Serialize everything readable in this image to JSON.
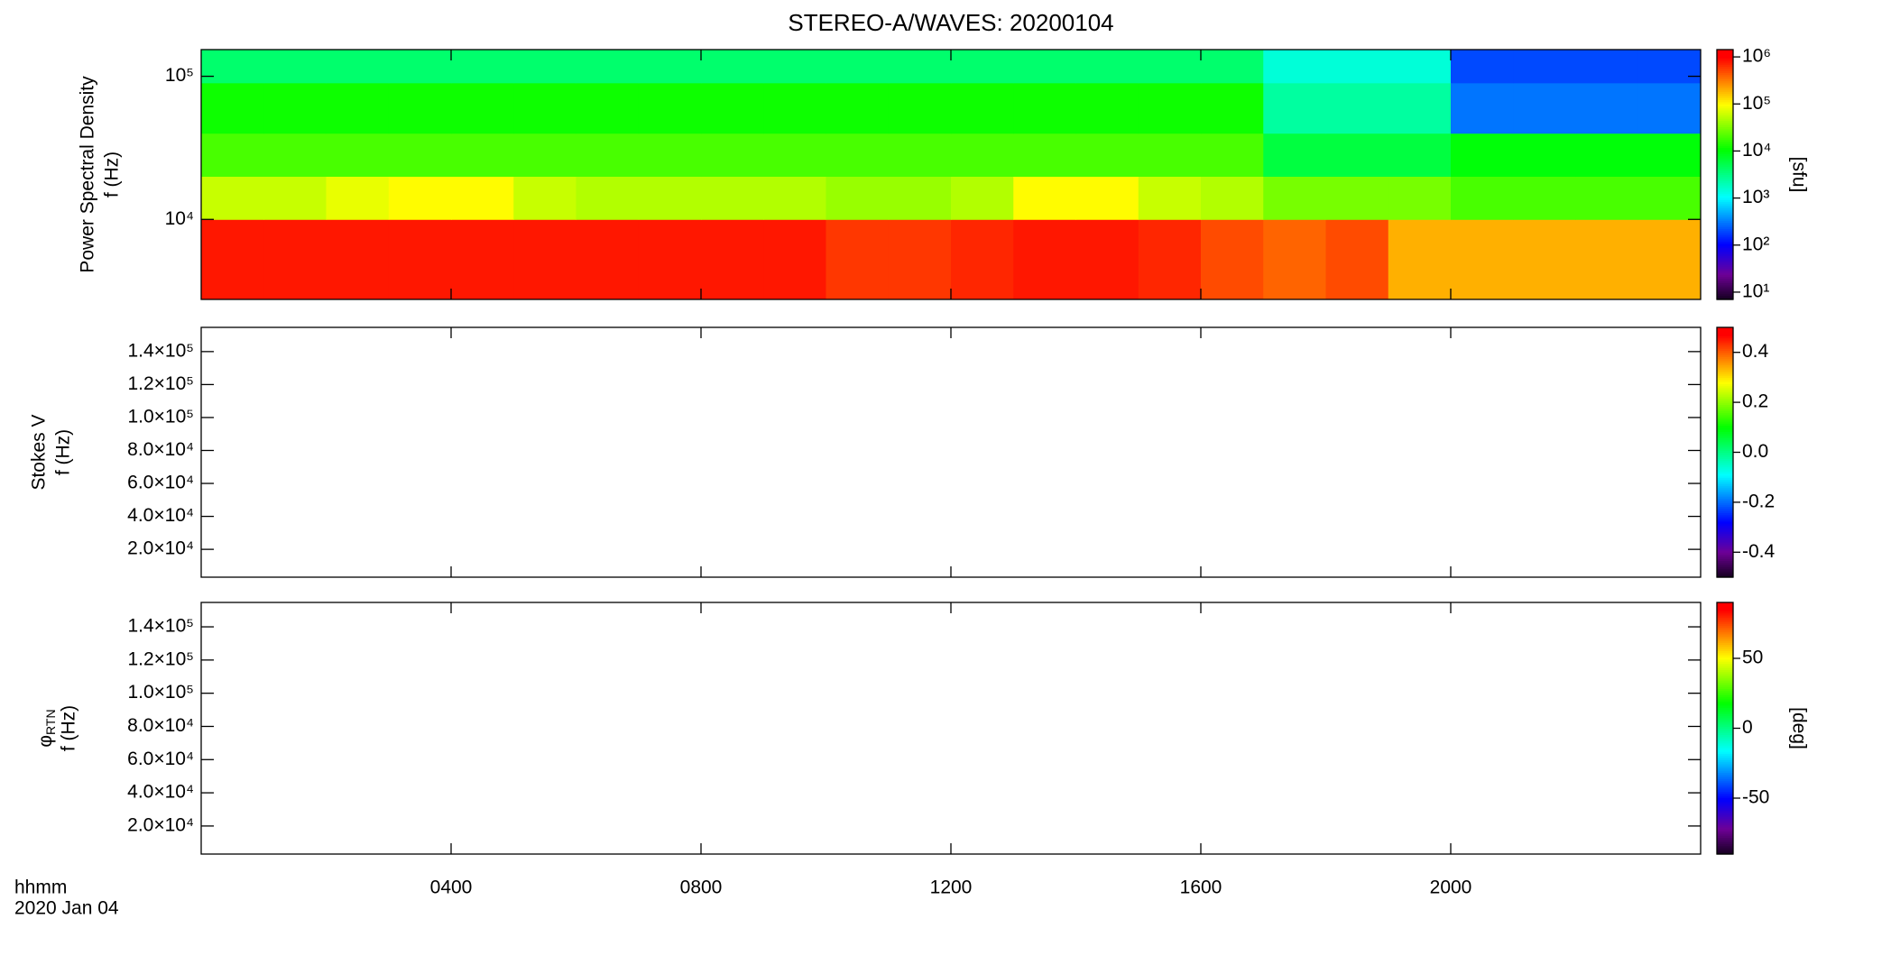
{
  "chart_data": [
    {
      "type": "heatmap",
      "title": "STEREO-A/WAVES: 20200104",
      "ylabel": [
        "Power Spectral Density",
        "f (Hz)"
      ],
      "ylog": true,
      "ylim": [
        2760,
        153600
      ],
      "yticks": [
        {
          "value": 10000,
          "label": "10⁴"
        },
        {
          "value": 100000,
          "label": "10⁵"
        }
      ],
      "xlim": [
        0,
        24
      ],
      "xticks": [
        4,
        8,
        12,
        16,
        20
      ],
      "x_edges": [
        0,
        1,
        2,
        3,
        4,
        5,
        6,
        7,
        8,
        9,
        10,
        11,
        12,
        13,
        14,
        15,
        16,
        17,
        18,
        19,
        20,
        21,
        22,
        23,
        24
      ],
      "y_edges": [
        2760,
        10000,
        20000,
        40000,
        90000,
        153600
      ],
      "values": [
        [
          800000,
          800000,
          800000,
          800000,
          800000,
          800000,
          800000,
          800000,
          800000,
          800000,
          600000,
          600000,
          700000,
          800000,
          800000,
          700000,
          500000,
          400000,
          500000,
          200000,
          200000,
          200000,
          200000,
          200000
        ],
        [
          60000,
          60000,
          80000,
          100000,
          100000,
          60000,
          50000,
          50000,
          50000,
          50000,
          40000,
          40000,
          50000,
          100000,
          100000,
          60000,
          50000,
          30000,
          30000,
          30000,
          20000,
          20000,
          20000,
          20000
        ],
        [
          20000,
          20000,
          20000,
          20000,
          20000,
          20000,
          20000,
          20000,
          20000,
          20000,
          20000,
          20000,
          20000,
          20000,
          20000,
          20000,
          20000,
          6000,
          6000,
          6000,
          10000,
          10000,
          10000,
          10000
        ],
        [
          12000,
          12000,
          12000,
          12000,
          12000,
          12000,
          12000,
          12000,
          12000,
          12000,
          12000,
          12000,
          12000,
          12000,
          12000,
          12000,
          12000,
          2500,
          2500,
          2500,
          300,
          300,
          300,
          300
        ],
        [
          4000,
          4000,
          4000,
          4000,
          4000,
          4000,
          4000,
          4000,
          4000,
          4000,
          4000,
          4000,
          4000,
          4000,
          4000,
          4000,
          4000,
          1500,
          1500,
          1500,
          200,
          200,
          200,
          200
        ]
      ],
      "clog": true,
      "clim": [
        7,
        1430000
      ],
      "cticks": [
        {
          "value": 10,
          "label": "10¹"
        },
        {
          "value": 100,
          "label": "10²"
        },
        {
          "value": 1000,
          "label": "10³"
        },
        {
          "value": 10000,
          "label": "10⁴"
        },
        {
          "value": 100000,
          "label": "10⁵"
        },
        {
          "value": 1000000,
          "label": "10⁶"
        }
      ],
      "clabel": "[sfu]"
    },
    {
      "type": "heatmap",
      "ylabel": [
        "Stokes V",
        "f (Hz)"
      ],
      "ylim": [
        3100,
        154700
      ],
      "yticks": [
        {
          "value": 20000,
          "label": "2.0×10⁴"
        },
        {
          "value": 40000,
          "label": "4.0×10⁴"
        },
        {
          "value": 60000,
          "label": "6.0×10⁴"
        },
        {
          "value": 80000,
          "label": "8.0×10⁴"
        },
        {
          "value": 100000,
          "label": "1.0×10⁵"
        },
        {
          "value": 120000,
          "label": "1.2×10⁵"
        },
        {
          "value": 140000,
          "label": "1.4×10⁵"
        }
      ],
      "xlim": [
        0,
        24
      ],
      "xticks": [
        4,
        8,
        12,
        16,
        20
      ],
      "clim": [
        -0.5,
        0.5
      ],
      "cticks": [
        -0.4,
        -0.2,
        {
          "value": 0,
          "label": "0.0"
        },
        0.2,
        0.4
      ]
    },
    {
      "type": "heatmap",
      "ylabel": [
        "φRTN",
        "f (Hz)"
      ],
      "ylim": [
        3100,
        154700
      ],
      "yticks": [
        {
          "value": 20000,
          "label": "2.0×10⁴"
        },
        {
          "value": 40000,
          "label": "4.0×10⁴"
        },
        {
          "value": 60000,
          "label": "6.0×10⁴"
        },
        {
          "value": 80000,
          "label": "8.0×10⁴"
        },
        {
          "value": 100000,
          "label": "1.0×10⁵"
        },
        {
          "value": 120000,
          "label": "1.2×10⁵"
        },
        {
          "value": 140000,
          "label": "1.4×10⁵"
        }
      ],
      "xlim": [
        0,
        24
      ],
      "xticks": [
        {
          "value": 4,
          "label": "0400"
        },
        {
          "value": 8,
          "label": "0800"
        },
        {
          "value": 12,
          "label": "1200"
        },
        {
          "value": 16,
          "label": "1600"
        },
        {
          "value": 20,
          "label": "2000"
        }
      ],
      "xlabel": [
        "hhmm",
        "2020 Jan 04"
      ],
      "clim": [
        -90,
        90
      ],
      "cticks": [
        -50,
        0,
        50
      ],
      "clabel": "[deg]"
    }
  ]
}
